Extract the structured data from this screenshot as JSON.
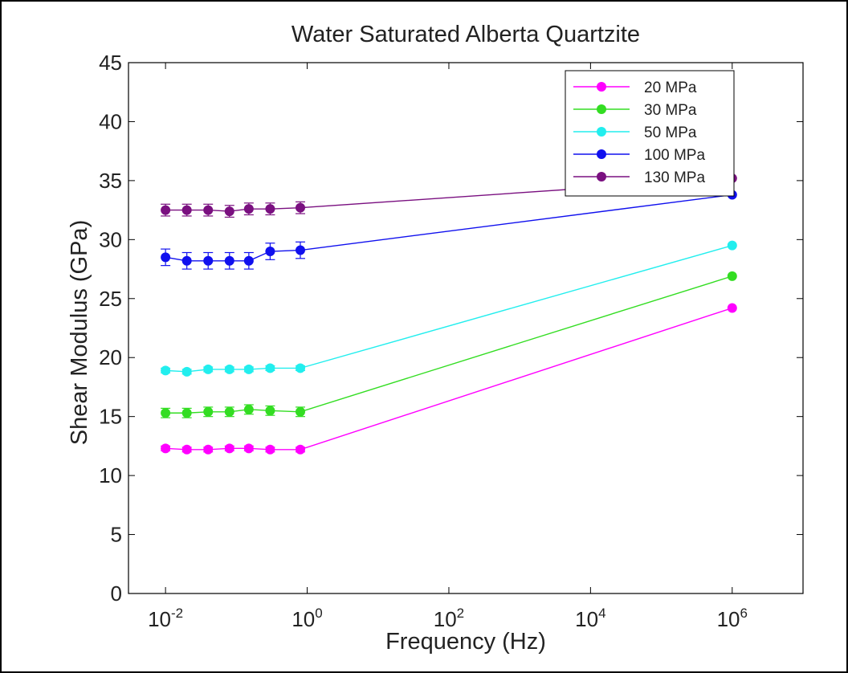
{
  "chart_data": {
    "type": "line",
    "title": "Water Saturated Alberta Quartzite",
    "xlabel": "Frequency (Hz)",
    "ylabel": "Shear Modulus (GPa)",
    "xscale": "log",
    "xlim": [
      0.003,
      10000000
    ],
    "ylim": [
      0,
      45
    ],
    "yticks": [
      0,
      5,
      10,
      15,
      20,
      25,
      30,
      35,
      40,
      45
    ],
    "xticks": [
      {
        "base": "10",
        "exp": "-2",
        "value": 0.01
      },
      {
        "base": "10",
        "exp": "0",
        "value": 1
      },
      {
        "base": "10",
        "exp": "2",
        "value": 100
      },
      {
        "base": "10",
        "exp": "4",
        "value": 10000
      },
      {
        "base": "10",
        "exp": "6",
        "value": 1000000
      }
    ],
    "legend_position": "top-right",
    "x": [
      0.01,
      0.02,
      0.04,
      0.08,
      0.15,
      0.3,
      0.8,
      1000000
    ],
    "series": [
      {
        "name": "20 MPa",
        "color": "#ff00ff",
        "values": [
          12.3,
          12.2,
          12.2,
          12.3,
          12.3,
          12.2,
          12.2,
          24.2
        ],
        "errors": [
          0.2,
          0.2,
          0.2,
          0.2,
          0.2,
          0.2,
          0.2,
          0.1
        ]
      },
      {
        "name": "30 MPa",
        "color": "#33dd22",
        "values": [
          15.3,
          15.3,
          15.4,
          15.4,
          15.6,
          15.5,
          15.4,
          26.9
        ],
        "errors": [
          0.4,
          0.4,
          0.4,
          0.4,
          0.4,
          0.4,
          0.4,
          0.1
        ]
      },
      {
        "name": "50 MPa",
        "color": "#22eeee",
        "values": [
          18.9,
          18.8,
          19.0,
          19.0,
          19.0,
          19.1,
          19.1,
          29.5
        ],
        "errors": [
          0.2,
          0.2,
          0.2,
          0.2,
          0.2,
          0.2,
          0.2,
          0.1
        ]
      },
      {
        "name": "100 MPa",
        "color": "#1010ee",
        "values": [
          28.5,
          28.2,
          28.2,
          28.2,
          28.2,
          29.0,
          29.1,
          33.8
        ],
        "errors": [
          0.7,
          0.7,
          0.7,
          0.7,
          0.7,
          0.7,
          0.7,
          0.1
        ]
      },
      {
        "name": "130 MPa",
        "color": "#7a1080",
        "values": [
          32.5,
          32.5,
          32.5,
          32.4,
          32.6,
          32.6,
          32.7,
          35.2
        ],
        "errors": [
          0.5,
          0.5,
          0.5,
          0.5,
          0.5,
          0.5,
          0.5,
          0.1
        ]
      }
    ]
  }
}
